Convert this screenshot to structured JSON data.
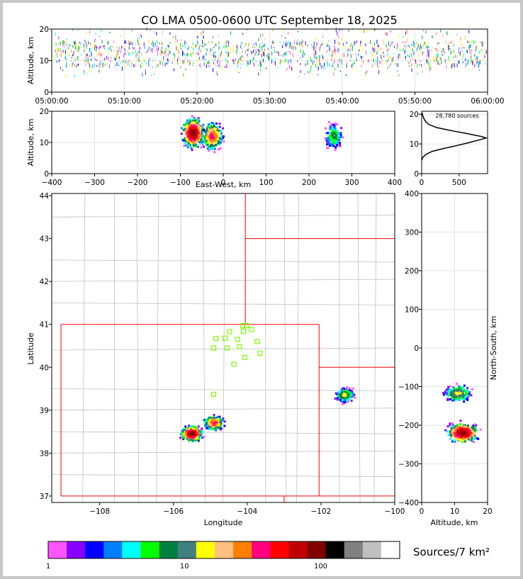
{
  "title": "CO LMA 0500-0600 UTC September 18, 2025",
  "colors": {
    "state_border": "#ff0000",
    "county_border": "#c0c0c0",
    "station_marker": "#7cfc00",
    "frame": "#c8c8c8"
  },
  "chart_data": [
    {
      "panel": "altitude-vs-time",
      "type": "scatter",
      "ylabel": "Altitude, km",
      "xlim": [
        "05:00:00",
        "06:00:00"
      ],
      "ylim": [
        0,
        20
      ],
      "x_ticks": [
        "05:00:00",
        "05:10:00",
        "05:20:00",
        "05:30:00",
        "05:40:00",
        "05:50:00",
        "06:00:00"
      ],
      "y_ticks": [
        "0",
        "10",
        "20"
      ],
      "altitude_band_km": [
        5,
        20
      ],
      "dense_altitude_km": [
        8,
        16
      ]
    },
    {
      "panel": "altitude-vs-east-west",
      "type": "heatmap",
      "xlabel": "East-West, km",
      "ylabel": "Altitude, km",
      "xlim": [
        -400,
        400
      ],
      "ylim": [
        0,
        20
      ],
      "x_ticks": [
        "−400",
        "−300",
        "−200",
        "−100",
        "0",
        "100",
        "200",
        "300",
        "400"
      ],
      "y_ticks": [
        "0",
        "10",
        "20"
      ],
      "cores": [
        {
          "x": -70,
          "z": 13,
          "peak_sources": 100
        },
        {
          "x": -25,
          "z": 12,
          "peak_sources": 40
        },
        {
          "x": 258,
          "z": 12,
          "peak_sources": 8
        }
      ]
    },
    {
      "panel": "altitude-histogram",
      "type": "line",
      "annotation": "28,780 sources",
      "xlim": [
        0,
        880
      ],
      "ylim": [
        0,
        21
      ],
      "x_ticks": [
        "0",
        "500"
      ],
      "y_ticks": [
        "0",
        "10",
        "20"
      ],
      "profile": [
        {
          "alt": 4.5,
          "count": 0
        },
        {
          "alt": 5.5,
          "count": 15
        },
        {
          "alt": 6.5,
          "count": 60
        },
        {
          "alt": 7.5,
          "count": 140
        },
        {
          "alt": 8.5,
          "count": 300
        },
        {
          "alt": 9.5,
          "count": 480
        },
        {
          "alt": 10.5,
          "count": 640
        },
        {
          "alt": 11.5,
          "count": 790
        },
        {
          "alt": 12.0,
          "count": 860
        },
        {
          "alt": 12.5,
          "count": 800
        },
        {
          "alt": 13.5,
          "count": 600
        },
        {
          "alt": 14.5,
          "count": 390
        },
        {
          "alt": 15.5,
          "count": 200
        },
        {
          "alt": 16.5,
          "count": 100
        },
        {
          "alt": 17.5,
          "count": 55
        },
        {
          "alt": 18.5,
          "count": 30
        },
        {
          "alt": 19.5,
          "count": 15
        },
        {
          "alt": 20.5,
          "count": 5
        }
      ]
    },
    {
      "panel": "plan-view-map",
      "type": "heatmap",
      "xlabel": "Longitude",
      "ylabel": "Latitude",
      "xlim": [
        -109.3,
        -100
      ],
      "ylim": [
        36.85,
        44.05
      ],
      "x_ticks": [
        "−108",
        "−106",
        "−104",
        "−102",
        "−100"
      ],
      "y_ticks": [
        "37",
        "38",
        "39",
        "40",
        "41",
        "42",
        "43",
        "44"
      ],
      "cores": [
        {
          "lon": -105.5,
          "lat": 38.45,
          "peak_sources": 100
        },
        {
          "lon": -104.9,
          "lat": 38.7,
          "peak_sources": 40
        },
        {
          "lon": -101.35,
          "lat": 39.35,
          "peak_sources": 15
        }
      ],
      "stations": [
        {
          "lon": -104.02,
          "lat": 40.97
        },
        {
          "lon": -104.48,
          "lat": 40.83
        },
        {
          "lon": -104.12,
          "lat": 40.97
        },
        {
          "lon": -103.88,
          "lat": 40.88
        },
        {
          "lon": -104.1,
          "lat": 40.84
        },
        {
          "lon": -104.6,
          "lat": 40.68
        },
        {
          "lon": -104.26,
          "lat": 40.65
        },
        {
          "lon": -104.85,
          "lat": 40.67
        },
        {
          "lon": -103.73,
          "lat": 40.6
        },
        {
          "lon": -104.21,
          "lat": 40.48
        },
        {
          "lon": -104.54,
          "lat": 40.45
        },
        {
          "lon": -104.91,
          "lat": 40.45
        },
        {
          "lon": -103.65,
          "lat": 40.33
        },
        {
          "lon": -104.07,
          "lat": 40.23
        },
        {
          "lon": -104.36,
          "lat": 40.07
        },
        {
          "lon": -104.91,
          "lat": 39.37
        }
      ]
    },
    {
      "panel": "north-south-vs-altitude",
      "type": "heatmap",
      "xlabel": "Altitude, km",
      "ylabel": "North-South, km",
      "xlim": [
        0,
        20
      ],
      "ylim": [
        -400,
        400
      ],
      "x_ticks": [
        "0",
        "10",
        "20"
      ],
      "y_ticks": [
        "−400",
        "−300",
        "−200",
        "−100",
        "0",
        "100",
        "200",
        "300",
        "400"
      ],
      "cores": [
        {
          "z": 12.5,
          "y": -220,
          "peak_sources": 100
        },
        {
          "z": 11,
          "y": -118,
          "peak_sources": 15
        }
      ]
    }
  ],
  "colorbar": {
    "label": "Sources/7 km²",
    "tick_labels": [
      "1",
      "10",
      "100"
    ],
    "colors": [
      "#ff55ff",
      "#8800ff",
      "#0000ff",
      "#0080ff",
      "#00ffff",
      "#00ff00",
      "#008040",
      "#408080",
      "#ffff00",
      "#ffc080",
      "#ff8000",
      "#ff0080",
      "#ff0000",
      "#c00000",
      "#800000",
      "#000000",
      "#808080",
      "#c0c0c0",
      "#ffffff"
    ]
  }
}
